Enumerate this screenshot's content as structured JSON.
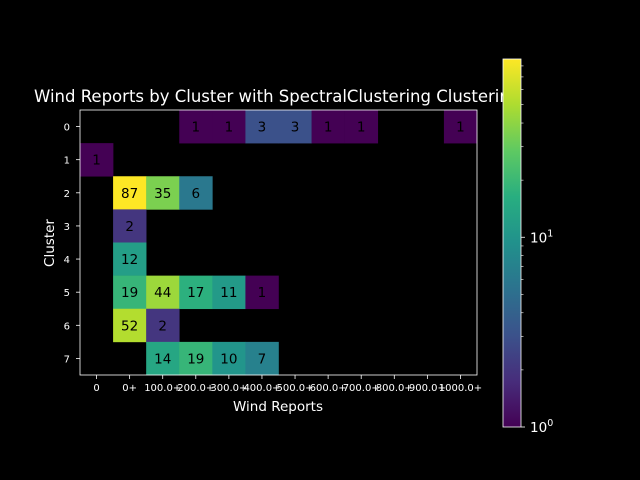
{
  "colors": {
    "background": "#000000",
    "text": "#ffffff"
  },
  "chart_data": {
    "type": "heatmap",
    "title": "Wind Reports by Cluster with SpectralClustering Clustering",
    "xlabel": "Wind Reports",
    "ylabel": "Cluster",
    "x_categories": [
      "0",
      "0+",
      "100.0+",
      "200.0+",
      "300.0+",
      "400.0+",
      "500.0+",
      "600.0+",
      "700.0+",
      "800.0+",
      "900.0+",
      "1000.0+"
    ],
    "y_categories": [
      "0",
      "1",
      "2",
      "3",
      "4",
      "5",
      "6",
      "7"
    ],
    "values": [
      [
        null,
        null,
        null,
        1,
        1,
        3,
        3,
        1,
        1,
        null,
        null,
        1
      ],
      [
        1,
        null,
        null,
        null,
        null,
        null,
        null,
        null,
        null,
        null,
        null,
        null
      ],
      [
        null,
        87,
        35,
        6,
        null,
        null,
        null,
        null,
        null,
        null,
        null,
        null
      ],
      [
        null,
        2,
        null,
        null,
        null,
        null,
        null,
        null,
        null,
        null,
        null,
        null
      ],
      [
        null,
        12,
        null,
        null,
        null,
        null,
        null,
        null,
        null,
        null,
        null,
        null
      ],
      [
        null,
        19,
        44,
        17,
        11,
        1,
        null,
        null,
        null,
        null,
        null,
        null
      ],
      [
        null,
        52,
        2,
        null,
        null,
        null,
        null,
        null,
        null,
        null,
        null,
        null
      ],
      [
        null,
        null,
        14,
        19,
        10,
        7,
        null,
        null,
        null,
        null,
        null,
        null
      ]
    ],
    "colormap": "viridis",
    "color_scale": "log",
    "color_range": [
      1,
      87
    ],
    "colorbar_ticks": [
      {
        "value": 1,
        "base": "10",
        "exp": "0"
      },
      {
        "value": 10,
        "base": "10",
        "exp": "1"
      }
    ],
    "grid": false
  }
}
